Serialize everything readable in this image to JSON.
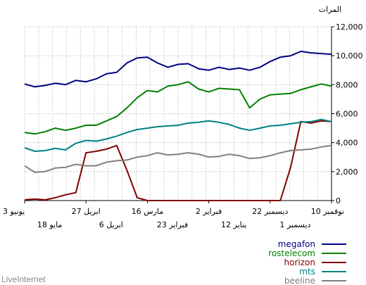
{
  "chart_data": {
    "type": "line",
    "ylabel": "المرات",
    "ylim": [
      0,
      12000
    ],
    "yticks": [
      "12,000",
      "10,000",
      "8,000",
      "6,000",
      "4,000",
      "2,000",
      "0"
    ],
    "ytick_values": [
      12000,
      10000,
      8000,
      6000,
      4000,
      2000,
      0
    ],
    "x_upper_labels": [
      "10 نوفمبر",
      "22 ديسمبر",
      "2 فبراير",
      "16 مارس",
      "27 ابريل",
      "3 يونيو"
    ],
    "x_lower_labels": [
      "1 ديسمبر",
      "12 يناير",
      "23 فبراير",
      "6 ابريل",
      "18 مايو"
    ],
    "grid": true,
    "legend_position": "bottom-right",
    "series": [
      {
        "name": "megafon",
        "color": "#000080",
        "values": [
          10100,
          10150,
          10200,
          10300,
          10000,
          9900,
          9600,
          9200,
          9000,
          9150,
          9050,
          9200,
          9000,
          9100,
          9450,
          9400,
          9200,
          9500,
          9900,
          9850,
          9500,
          8850,
          8750,
          8400,
          8200,
          8300,
          8000,
          8100,
          7950,
          7850,
          8050
        ]
      },
      {
        "name": "rostelecom",
        "color": "#008000",
        "values": [
          7900,
          8050,
          7850,
          7650,
          7400,
          7350,
          7300,
          7000,
          6400,
          7650,
          7700,
          7750,
          7500,
          7700,
          8200,
          8000,
          7900,
          7500,
          7600,
          7100,
          6400,
          5800,
          5500,
          5200,
          5200,
          5000,
          4850,
          5000,
          4750,
          4600,
          4700
        ]
      },
      {
        "name": "horizon",
        "color": "#800000",
        "values": [
          5450,
          5500,
          5350,
          5450,
          2300,
          0,
          0,
          0,
          0,
          0,
          0,
          0,
          0,
          0,
          0,
          0,
          0,
          0,
          0,
          200,
          2100,
          3800,
          3550,
          3400,
          3300,
          550,
          400,
          200,
          50,
          100,
          50
        ]
      },
      {
        "name": "mts",
        "color": "#008080",
        "values": [
          5450,
          5600,
          5450,
          5400,
          5300,
          5200,
          5150,
          5000,
          4850,
          5000,
          5250,
          5400,
          5500,
          5400,
          5350,
          5200,
          5150,
          5100,
          5000,
          4900,
          4700,
          4450,
          4250,
          4100,
          4150,
          3950,
          3500,
          3600,
          3450,
          3400,
          3650
        ]
      },
      {
        "name": "beeline",
        "color": "#808080",
        "values": [
          3800,
          3700,
          3550,
          3500,
          3450,
          3300,
          3100,
          2950,
          2900,
          3100,
          3200,
          3050,
          3000,
          3200,
          3300,
          3200,
          3150,
          3300,
          3100,
          3000,
          2800,
          2750,
          2650,
          2400,
          2400,
          2500,
          2300,
          2250,
          2000,
          1950,
          2400
        ]
      }
    ]
  },
  "footer": {
    "brand": "LiveInternet"
  }
}
